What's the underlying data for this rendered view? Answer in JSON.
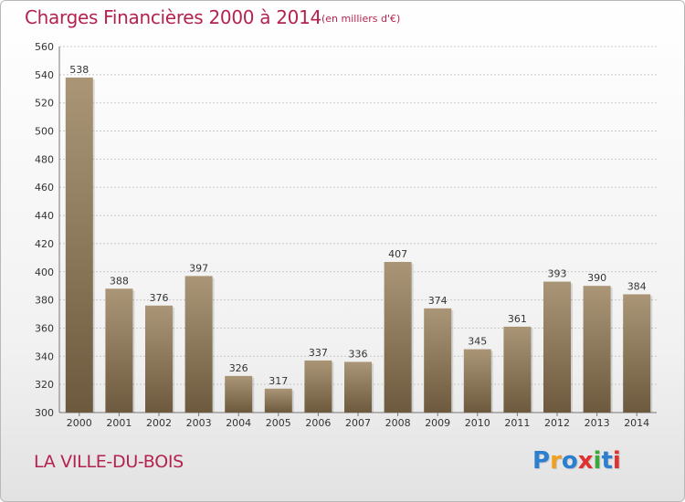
{
  "header": {
    "title": "Charges Financières 2000 à 2014",
    "subtitle": "(en milliers d'€)"
  },
  "footer": {
    "commune": "LA VILLE-DU-BOIS",
    "logo_text": "Proxiti",
    "logo_colors": [
      "#2a7fd0",
      "#f0a020",
      "#2a7fd0",
      "#e03030",
      "#3aa83a",
      "#2a7fd0",
      "#e03030"
    ]
  },
  "chart_data": {
    "type": "bar",
    "title": "Charges Financières 2000 à 2014",
    "subtitle": "(en milliers d'€)",
    "categories": [
      "2000",
      "2001",
      "2002",
      "2003",
      "2004",
      "2005",
      "2006",
      "2007",
      "2008",
      "2009",
      "2010",
      "2011",
      "2012",
      "2013",
      "2014"
    ],
    "values": [
      538,
      388,
      376,
      397,
      326,
      317,
      337,
      336,
      407,
      374,
      345,
      361,
      393,
      390,
      384
    ],
    "ylim": [
      300,
      560
    ],
    "yticks": [
      300,
      320,
      340,
      360,
      380,
      400,
      420,
      440,
      460,
      480,
      500,
      520,
      540,
      560
    ],
    "grid": true,
    "bar_color_top": "#aa9677",
    "bar_color_bottom": "#6d5a3e"
  }
}
